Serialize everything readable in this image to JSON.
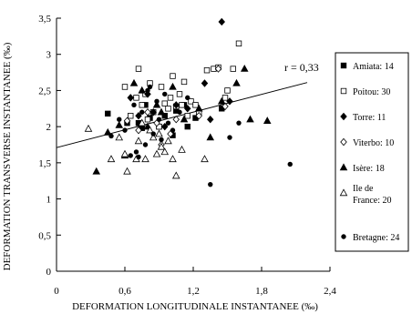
{
  "chart_data": {
    "type": "scatter",
    "title": "",
    "xlabel": "DEFORMATION LONGITUDINALE INSTANTANEE (‰)",
    "ylabel": "DEFORMATION TRANSVERSE INSTANTANEE (‰)",
    "xlim": [
      0,
      2.4
    ],
    "ylim": [
      0,
      3.5
    ],
    "x_ticks": [
      0,
      0.6,
      1.2,
      1.8,
      2.4
    ],
    "x_tick_labels": [
      "0",
      "0,6",
      "1,2",
      "1,8",
      "2,4"
    ],
    "y_ticks": [
      0,
      0.5,
      1,
      1.5,
      2,
      2.5,
      3,
      3.5
    ],
    "y_tick_labels": [
      "0",
      "0,5",
      "1",
      "1,5",
      "2",
      "2,5",
      "3",
      "3,5"
    ],
    "grid": false,
    "legend_position": "right",
    "annotation": "r = 0,33",
    "regression": {
      "x": [
        0,
        2.2
      ],
      "y": [
        1.71,
        2.61
      ]
    },
    "series": [
      {
        "name": "Amiata: 14",
        "marker": "square-filled",
        "points": [
          [
            0.45,
            2.18
          ],
          [
            0.62,
            2.05
          ],
          [
            0.72,
            2.05
          ],
          [
            0.75,
            1.98
          ],
          [
            0.78,
            2.3
          ],
          [
            0.82,
            2.12
          ],
          [
            0.9,
            2.0
          ],
          [
            0.95,
            2.15
          ],
          [
            1.02,
            1.88
          ],
          [
            1.05,
            2.22
          ],
          [
            1.12,
            2.3
          ],
          [
            1.15,
            2.0
          ],
          [
            1.22,
            2.12
          ],
          [
            1.45,
            2.25
          ]
        ]
      },
      {
        "name": "Poitou: 30",
        "marker": "square-open",
        "points": [
          [
            0.6,
            2.55
          ],
          [
            0.65,
            2.15
          ],
          [
            0.7,
            2.4
          ],
          [
            0.72,
            2.8
          ],
          [
            0.75,
            2.3
          ],
          [
            0.78,
            2.45
          ],
          [
            0.8,
            2.1
          ],
          [
            0.82,
            2.6
          ],
          [
            0.85,
            2.2
          ],
          [
            0.9,
            2.0
          ],
          [
            0.92,
            2.55
          ],
          [
            0.95,
            2.32
          ],
          [
            0.98,
            2.25
          ],
          [
            1.0,
            2.4
          ],
          [
            1.02,
            2.7
          ],
          [
            1.05,
            2.28
          ],
          [
            1.08,
            2.45
          ],
          [
            1.1,
            2.3
          ],
          [
            1.12,
            2.62
          ],
          [
            1.15,
            2.15
          ],
          [
            1.18,
            2.35
          ],
          [
            1.22,
            2.3
          ],
          [
            1.25,
            2.2
          ],
          [
            1.32,
            2.78
          ],
          [
            1.38,
            2.8
          ],
          [
            1.42,
            2.82
          ],
          [
            1.48,
            2.4
          ],
          [
            1.5,
            2.5
          ],
          [
            1.55,
            2.8
          ],
          [
            1.6,
            3.15
          ]
        ]
      },
      {
        "name": "Torre: 11",
        "marker": "diamond-filled",
        "points": [
          [
            0.65,
            2.4
          ],
          [
            0.72,
            2.15
          ],
          [
            0.8,
            2.45
          ],
          [
            0.85,
            2.2
          ],
          [
            0.95,
            2.0
          ],
          [
            1.05,
            2.3
          ],
          [
            1.15,
            2.25
          ],
          [
            1.3,
            2.6
          ],
          [
            1.35,
            2.1
          ],
          [
            1.45,
            3.45
          ],
          [
            1.52,
            2.35
          ]
        ]
      },
      {
        "name": "Viterbo: 10",
        "marker": "diamond-open",
        "points": [
          [
            0.62,
            2.08
          ],
          [
            0.72,
            1.95
          ],
          [
            0.8,
            2.2
          ],
          [
            0.88,
            2.05
          ],
          [
            0.92,
            1.75
          ],
          [
            1.0,
            1.9
          ],
          [
            1.05,
            2.1
          ],
          [
            1.25,
            2.15
          ],
          [
            1.42,
            2.8
          ],
          [
            1.48,
            2.28
          ]
        ]
      },
      {
        "name": "Isère: 18",
        "marker": "triangle-filled",
        "points": [
          [
            0.35,
            1.38
          ],
          [
            0.45,
            1.92
          ],
          [
            0.55,
            2.02
          ],
          [
            0.6,
            1.6
          ],
          [
            0.68,
            2.6
          ],
          [
            0.75,
            2.5
          ],
          [
            0.8,
            2.0
          ],
          [
            0.88,
            2.3
          ],
          [
            0.92,
            2.2
          ],
          [
            1.02,
            2.55
          ],
          [
            1.12,
            2.1
          ],
          [
            1.25,
            2.25
          ],
          [
            1.35,
            1.85
          ],
          [
            1.45,
            2.35
          ],
          [
            1.58,
            2.6
          ],
          [
            1.65,
            2.8
          ],
          [
            1.7,
            2.1
          ],
          [
            1.85,
            2.08
          ]
        ]
      },
      {
        "name": "Ile de France: 20",
        "marker": "triangle-open",
        "points": [
          [
            0.28,
            1.97
          ],
          [
            0.48,
            1.55
          ],
          [
            0.55,
            1.85
          ],
          [
            0.6,
            1.62
          ],
          [
            0.62,
            1.38
          ],
          [
            0.7,
            1.55
          ],
          [
            0.72,
            1.8
          ],
          [
            0.75,
            2.05
          ],
          [
            0.78,
            1.55
          ],
          [
            0.82,
            1.95
          ],
          [
            0.85,
            1.85
          ],
          [
            0.88,
            1.62
          ],
          [
            0.9,
            1.9
          ],
          [
            0.92,
            1.72
          ],
          [
            0.95,
            1.65
          ],
          [
            0.98,
            1.8
          ],
          [
            1.02,
            1.55
          ],
          [
            1.05,
            1.32
          ],
          [
            1.1,
            1.68
          ],
          [
            1.3,
            1.55
          ]
        ]
      },
      {
        "name": "Bretagne: 24",
        "marker": "circle-filled",
        "points": [
          [
            0.48,
            1.87
          ],
          [
            0.55,
            2.1
          ],
          [
            0.6,
            1.95
          ],
          [
            0.65,
            1.6
          ],
          [
            0.68,
            2.3
          ],
          [
            0.7,
            1.65
          ],
          [
            0.72,
            1.58
          ],
          [
            0.75,
            2.2
          ],
          [
            0.78,
            1.75
          ],
          [
            0.8,
            2.5
          ],
          [
            0.82,
            2.55
          ],
          [
            0.85,
            1.9
          ],
          [
            0.88,
            2.35
          ],
          [
            0.9,
            2.1
          ],
          [
            0.92,
            1.82
          ],
          [
            0.95,
            2.45
          ],
          [
            0.98,
            2.05
          ],
          [
            1.02,
            1.95
          ],
          [
            1.08,
            2.2
          ],
          [
            1.15,
            2.4
          ],
          [
            1.35,
            1.2
          ],
          [
            1.52,
            1.85
          ],
          [
            1.6,
            2.05
          ],
          [
            2.05,
            1.48
          ]
        ]
      }
    ]
  }
}
